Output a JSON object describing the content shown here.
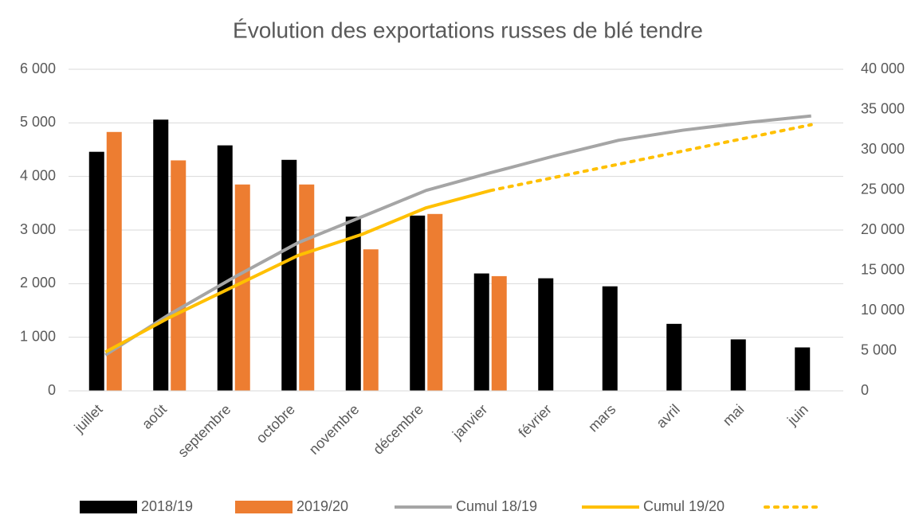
{
  "chart_data": {
    "type": "bar_line",
    "title": "Évolution des exportations russes de blé tendre",
    "categories": [
      "juillet",
      "août",
      "septembre",
      "octobre",
      "novembre",
      "décembre",
      "janvier",
      "février",
      "mars",
      "avril",
      "mai",
      "juin"
    ],
    "series": [
      {
        "name": "2018/19",
        "color": "#000000",
        "kind": "bar",
        "values": [
          4460,
          5060,
          4580,
          4310,
          3250,
          3270,
          2190,
          2100,
          1950,
          1250,
          960,
          810
        ]
      },
      {
        "name": "2019/20",
        "color": "#ED7D31",
        "kind": "bar",
        "values": [
          4830,
          4300,
          3850,
          3850,
          2640,
          3300,
          2140,
          null,
          null,
          null,
          null,
          null
        ]
      },
      {
        "name": "Cumul 18/19",
        "color": "#A5A5A5",
        "kind": "line",
        "axis": "y2",
        "values": [
          4460,
          9520,
          14100,
          18410,
          21660,
          24930,
          27120,
          29220,
          31170,
          32420,
          33380,
          34190
        ]
      },
      {
        "name": "Cumul 19/20",
        "color": "#FFC000",
        "kind": "line",
        "axis": "y2",
        "values": [
          4830,
          9130,
          12980,
          16830,
          19470,
          22770,
          24910,
          null,
          null,
          null,
          null,
          null
        ]
      },
      {
        "color": "#FFC000",
        "kind": "dotted",
        "axis": "y2",
        "values": [
          null,
          null,
          null,
          null,
          null,
          null,
          24910,
          26550,
          28190,
          29830,
          31470,
          33100
        ]
      }
    ],
    "ylim": [
      0,
      6000
    ],
    "yticks": [
      0,
      {
        "value": 1000,
        "label": "1 000"
      },
      {
        "value": 2000,
        "label": "2 000"
      },
      {
        "value": 3000,
        "label": "3 000"
      },
      {
        "value": 4000,
        "label": "4 000"
      },
      {
        "value": 5000,
        "label": "5 000"
      },
      {
        "value": 6000,
        "label": "6 000"
      }
    ],
    "y2lim": [
      0,
      40000
    ],
    "y2ticks": [
      0,
      {
        "value": 5000,
        "label": "5 000"
      },
      {
        "value": 10000,
        "label": "10 000"
      },
      {
        "value": 15000,
        "label": "15 000"
      },
      {
        "value": 20000,
        "label": "20 000"
      },
      {
        "value": 25000,
        "label": "25 000"
      },
      {
        "value": 30000,
        "label": "30 000"
      },
      {
        "value": 35000,
        "label": "35 000"
      },
      {
        "value": 40000,
        "label": "40 000"
      }
    ],
    "grid": true,
    "legend": "bottom"
  }
}
